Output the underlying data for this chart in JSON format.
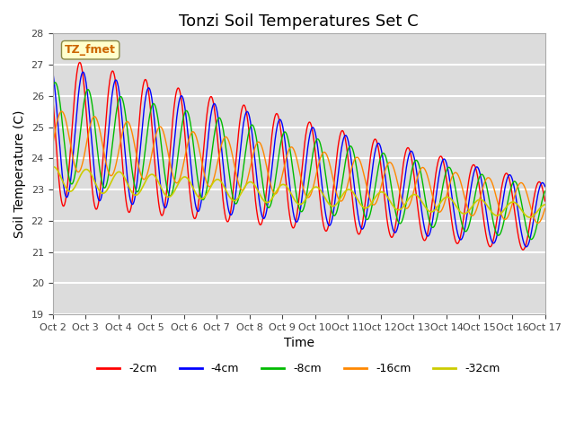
{
  "title": "Tonzi Soil Temperatures Set C",
  "xlabel": "Time",
  "ylabel": "Soil Temperature (C)",
  "ylim": [
    19.0,
    28.0
  ],
  "yticks": [
    19.0,
    20.0,
    21.0,
    22.0,
    23.0,
    24.0,
    25.0,
    26.0,
    27.0,
    28.0
  ],
  "x_labels": [
    "Oct 2",
    "Oct 3",
    "Oct 4",
    "Oct 5",
    "Oct 6",
    "Oct 7",
    "Oct 8",
    "Oct 9",
    "Oct 10",
    "Oct 11",
    "Oct 12",
    "Oct 13",
    "Oct 14",
    "Oct 15",
    "Oct 16",
    "Oct 17"
  ],
  "annotation_text": "TZ_fmet",
  "annotation_color": "#cc6600",
  "annotation_bg": "#ffffcc",
  "series": [
    {
      "label": "-2cm",
      "color": "#ff0000"
    },
    {
      "label": "-4cm",
      "color": "#0000ff"
    },
    {
      "label": "-8cm",
      "color": "#00bb00"
    },
    {
      "label": "-16cm",
      "color": "#ff8800"
    },
    {
      "label": "-32cm",
      "color": "#cccc00"
    }
  ],
  "plot_bg_color": "#dcdcdc",
  "grid_color": "#ffffff",
  "title_fontsize": 13,
  "label_fontsize": 10
}
